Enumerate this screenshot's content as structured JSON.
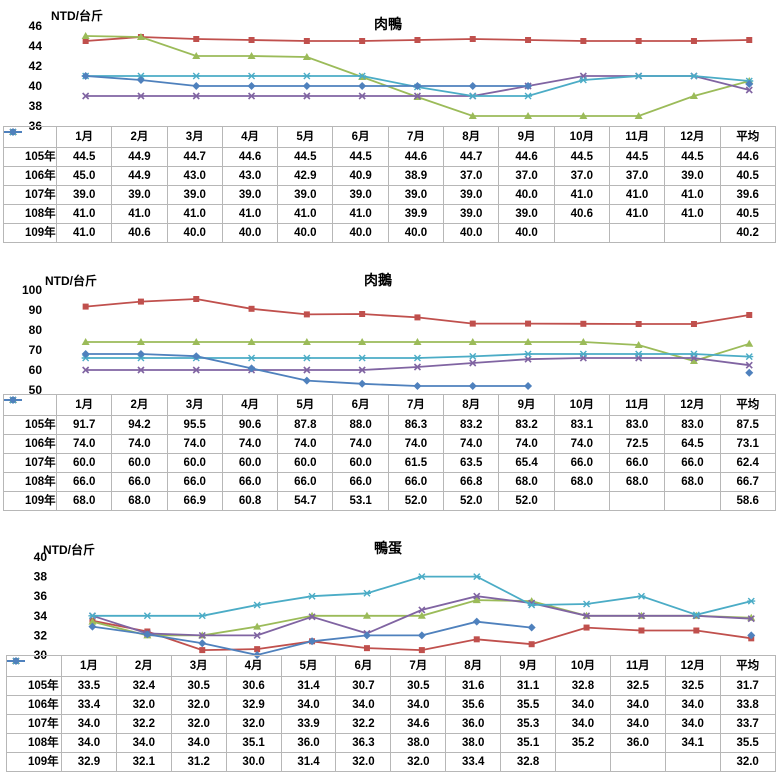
{
  "months": [
    "1月",
    "2月",
    "3月",
    "4月",
    "5月",
    "6月",
    "7月",
    "8月",
    "9月",
    "10月",
    "11月",
    "12月",
    "平均"
  ],
  "colors": {
    "105年": "#c0504d",
    "106年": "#9bbb59",
    "107年": "#8064a2",
    "108年": "#4bacc6",
    "109年": "#4f81bd"
  },
  "chart_data": [
    {
      "type": "line",
      "title": "肉鴨",
      "ylabel": "NTD/台斤",
      "ylim": [
        36,
        46
      ],
      "yticks": [
        36,
        38,
        40,
        42,
        44,
        46
      ],
      "categories": [
        "1月",
        "2月",
        "3月",
        "4月",
        "5月",
        "6月",
        "7月",
        "8月",
        "9月",
        "10月",
        "11月",
        "12月",
        "平均"
      ],
      "series": [
        {
          "name": "105年",
          "values": [
            44.5,
            44.9,
            44.7,
            44.6,
            44.5,
            44.5,
            44.6,
            44.7,
            44.6,
            44.5,
            44.5,
            44.5,
            44.6
          ],
          "labels": [
            "44.5",
            "44.9",
            "44.7",
            "44.6",
            "44.5",
            "44.5",
            "44.6",
            "44.7",
            "44.6",
            "44.5",
            "44.5",
            "44.5",
            "44.6"
          ]
        },
        {
          "name": "106年",
          "values": [
            45.0,
            44.9,
            43.0,
            43.0,
            42.9,
            40.9,
            38.9,
            37.0,
            37.0,
            37.0,
            37.0,
            39.0,
            40.5
          ],
          "labels": [
            "45.0",
            "44.9",
            "43.0",
            "43.0",
            "42.9",
            "40.9",
            "38.9",
            "37.0",
            "37.0",
            "37.0",
            "37.0",
            "39.0",
            "40.5"
          ]
        },
        {
          "name": "107年",
          "values": [
            39.0,
            39.0,
            39.0,
            39.0,
            39.0,
            39.0,
            39.0,
            39.0,
            40.0,
            41.0,
            41.0,
            41.0,
            39.6
          ],
          "labels": [
            "39.0",
            "39.0",
            "39.0",
            "39.0",
            "39.0",
            "39.0",
            "39.0",
            "39.0",
            "40.0",
            "41.0",
            "41.0",
            "41.0",
            "39.6"
          ]
        },
        {
          "name": "108年",
          "values": [
            41.0,
            41.0,
            41.0,
            41.0,
            41.0,
            41.0,
            39.9,
            39.0,
            39.0,
            40.6,
            41.0,
            41.0,
            40.5
          ],
          "labels": [
            "41.0",
            "41.0",
            "41.0",
            "41.0",
            "41.0",
            "41.0",
            "39.9",
            "39.0",
            "39.0",
            "40.6",
            "41.0",
            "41.0",
            "40.5"
          ]
        },
        {
          "name": "109年",
          "values": [
            41.0,
            40.6,
            40.0,
            40.0,
            40.0,
            40.0,
            40.0,
            40.0,
            40.0,
            null,
            null,
            null,
            40.2
          ],
          "labels": [
            "41.0",
            "40.6",
            "40.0",
            "40.0",
            "40.0",
            "40.0",
            "40.0",
            "40.0",
            "40.0",
            "",
            "",
            "",
            "40.2"
          ]
        }
      ]
    },
    {
      "type": "line",
      "title": "肉鵝",
      "ylabel": "NTD/台斤",
      "ylim": [
        50,
        100
      ],
      "yticks": [
        50,
        60,
        70,
        80,
        90,
        100
      ],
      "categories": [
        "1月",
        "2月",
        "3月",
        "4月",
        "5月",
        "6月",
        "7月",
        "8月",
        "9月",
        "10月",
        "11月",
        "12月",
        "平均"
      ],
      "series": [
        {
          "name": "105年",
          "values": [
            91.7,
            94.2,
            95.5,
            90.6,
            87.8,
            88.0,
            86.3,
            83.2,
            83.2,
            83.1,
            83.0,
            83.0,
            87.5
          ],
          "labels": [
            "91.7",
            "94.2",
            "95.5",
            "90.6",
            "87.8",
            "88.0",
            "86.3",
            "83.2",
            "83.2",
            "83.1",
            "83.0",
            "83.0",
            "87.5"
          ]
        },
        {
          "name": "106年",
          "values": [
            74.0,
            74.0,
            74.0,
            74.0,
            74.0,
            74.0,
            74.0,
            74.0,
            74.0,
            74.0,
            72.5,
            64.5,
            73.1
          ],
          "labels": [
            "74.0",
            "74.0",
            "74.0",
            "74.0",
            "74.0",
            "74.0",
            "74.0",
            "74.0",
            "74.0",
            "74.0",
            "72.5",
            "64.5",
            "73.1"
          ]
        },
        {
          "name": "107年",
          "values": [
            60.0,
            60.0,
            60.0,
            60.0,
            60.0,
            60.0,
            61.5,
            63.5,
            65.4,
            66.0,
            66.0,
            66.0,
            62.4
          ],
          "labels": [
            "60.0",
            "60.0",
            "60.0",
            "60.0",
            "60.0",
            "60.0",
            "61.5",
            "63.5",
            "65.4",
            "66.0",
            "66.0",
            "66.0",
            "62.4"
          ]
        },
        {
          "name": "108年",
          "values": [
            66.0,
            66.0,
            66.0,
            66.0,
            66.0,
            66.0,
            66.0,
            66.8,
            68.0,
            68.0,
            68.0,
            68.0,
            66.7
          ],
          "labels": [
            "66.0",
            "66.0",
            "66.0",
            "66.0",
            "66.0",
            "66.0",
            "66.0",
            "66.8",
            "68.0",
            "68.0",
            "68.0",
            "68.0",
            "66.7"
          ]
        },
        {
          "name": "109年",
          "values": [
            68.0,
            68.0,
            66.9,
            60.8,
            54.7,
            53.1,
            52.0,
            52.0,
            52.0,
            null,
            null,
            null,
            58.6
          ],
          "labels": [
            "68.0",
            "68.0",
            "66.9",
            "60.8",
            "54.7",
            "53.1",
            "52.0",
            "52.0",
            "52.0",
            "",
            "",
            "",
            "58.6"
          ]
        }
      ]
    },
    {
      "type": "line",
      "title": "鴨蛋",
      "ylabel": "NTD/台斤",
      "ylim": [
        30,
        40
      ],
      "yticks": [
        30,
        32,
        34,
        36,
        38,
        40
      ],
      "categories": [
        "1月",
        "2月",
        "3月",
        "4月",
        "5月",
        "6月",
        "7月",
        "8月",
        "9月",
        "10月",
        "11月",
        "12月",
        "平均"
      ],
      "series": [
        {
          "name": "105年",
          "values": [
            33.5,
            32.4,
            30.5,
            30.6,
            31.4,
            30.7,
            30.5,
            31.6,
            31.1,
            32.8,
            32.5,
            32.5,
            31.7
          ],
          "labels": [
            "33.5",
            "32.4",
            "30.5",
            "30.6",
            "31.4",
            "30.7",
            "30.5",
            "31.6",
            "31.1",
            "32.8",
            "32.5",
            "32.5",
            "31.7"
          ]
        },
        {
          "name": "106年",
          "values": [
            33.4,
            32.0,
            32.0,
            32.9,
            34.0,
            34.0,
            34.0,
            35.6,
            35.5,
            34.0,
            34.0,
            34.0,
            33.8
          ],
          "labels": [
            "33.4",
            "32.0",
            "32.0",
            "32.9",
            "34.0",
            "34.0",
            "34.0",
            "35.6",
            "35.5",
            "34.0",
            "34.0",
            "34.0",
            "33.8"
          ]
        },
        {
          "name": "107年",
          "values": [
            34.0,
            32.2,
            32.0,
            32.0,
            33.9,
            32.2,
            34.6,
            36.0,
            35.3,
            34.0,
            34.0,
            34.0,
            33.7
          ],
          "labels": [
            "34.0",
            "32.2",
            "32.0",
            "32.0",
            "33.9",
            "32.2",
            "34.6",
            "36.0",
            "35.3",
            "34.0",
            "34.0",
            "34.0",
            "33.7"
          ]
        },
        {
          "name": "108年",
          "values": [
            34.0,
            34.0,
            34.0,
            35.1,
            36.0,
            36.3,
            38.0,
            38.0,
            35.1,
            35.2,
            36.0,
            34.1,
            35.5
          ],
          "labels": [
            "34.0",
            "34.0",
            "34.0",
            "35.1",
            "36.0",
            "36.3",
            "38.0",
            "38.0",
            "35.1",
            "35.2",
            "36.0",
            "34.1",
            "35.5"
          ]
        },
        {
          "name": "109年",
          "values": [
            32.9,
            32.1,
            31.2,
            30.0,
            31.4,
            32.0,
            32.0,
            33.4,
            32.8,
            null,
            null,
            null,
            32.0
          ],
          "labels": [
            "32.9",
            "32.1",
            "31.2",
            "30.0",
            "31.4",
            "32.0",
            "32.0",
            "33.4",
            "32.8",
            "",
            "",
            "",
            "32.0"
          ]
        }
      ]
    }
  ]
}
